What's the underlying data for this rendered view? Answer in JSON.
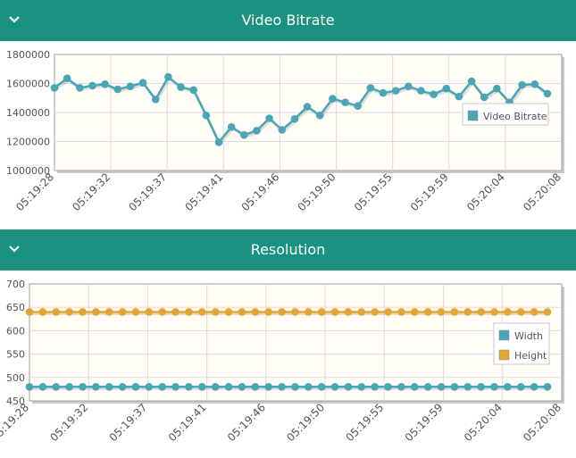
{
  "panels": [
    {
      "title": "Video Bitrate"
    },
    {
      "title": "Resolution"
    }
  ],
  "icons": {
    "collapse": "chevron-down-icon"
  },
  "colors": {
    "header_bg": "#1a927f",
    "plot_bg": "#fffdf5",
    "width_series": "#4aa6b7",
    "height_series": "#e6a533"
  },
  "chart_data": [
    {
      "type": "line",
      "title": "",
      "xlabel": "",
      "ylabel": "",
      "x_ticks": [
        "05:19:28",
        "05:19:32",
        "05:19:37",
        "05:19:41",
        "05:19:46",
        "05:19:50",
        "05:19:55",
        "05:19:59",
        "05:20:04",
        "05:20:08"
      ],
      "ylim": [
        1000000,
        1800000
      ],
      "y_ticks": [
        "1000000",
        "1200000",
        "1400000",
        "1600000",
        "1800000"
      ],
      "legend": "right",
      "grid": true,
      "series": [
        {
          "name": "Video Bitrate",
          "color": "#4aa6b7",
          "values": [
            1570000,
            1635000,
            1570000,
            1585000,
            1595000,
            1560000,
            1580000,
            1605000,
            1490000,
            1645000,
            1575000,
            1555000,
            1380000,
            1195000,
            1300000,
            1245000,
            1275000,
            1360000,
            1280000,
            1355000,
            1440000,
            1380000,
            1495000,
            1470000,
            1445000,
            1570000,
            1535000,
            1550000,
            1580000,
            1550000,
            1525000,
            1565000,
            1510000,
            1615000,
            1505000,
            1565000,
            1470000,
            1590000,
            1595000,
            1530000
          ]
        }
      ]
    },
    {
      "type": "line",
      "title": "",
      "xlabel": "",
      "ylabel": "",
      "x_ticks": [
        "05:19:28",
        "05:19:32",
        "05:19:37",
        "05:19:41",
        "05:19:46",
        "05:19:50",
        "05:19:55",
        "05:19:59",
        "05:20:04",
        "05:20:08"
      ],
      "ylim": [
        450,
        700
      ],
      "y_ticks": [
        "450",
        "500",
        "550",
        "600",
        "650",
        "700"
      ],
      "legend": "right",
      "grid": true,
      "series": [
        {
          "name": "Width",
          "color": "#4aa6b7",
          "values": [
            480,
            480,
            480,
            480,
            480,
            480,
            480,
            480,
            480,
            480,
            480,
            480,
            480,
            480,
            480,
            480,
            480,
            480,
            480,
            480,
            480,
            480,
            480,
            480,
            480,
            480,
            480,
            480,
            480,
            480,
            480,
            480,
            480,
            480,
            480,
            480,
            480,
            480,
            480,
            480
          ]
        },
        {
          "name": "Height",
          "color": "#e6a533",
          "values": [
            640,
            640,
            640,
            640,
            640,
            640,
            640,
            640,
            640,
            640,
            640,
            640,
            640,
            640,
            640,
            640,
            640,
            640,
            640,
            640,
            640,
            640,
            640,
            640,
            640,
            640,
            640,
            640,
            640,
            640,
            640,
            640,
            640,
            640,
            640,
            640,
            640,
            640,
            640,
            640
          ]
        }
      ]
    }
  ]
}
